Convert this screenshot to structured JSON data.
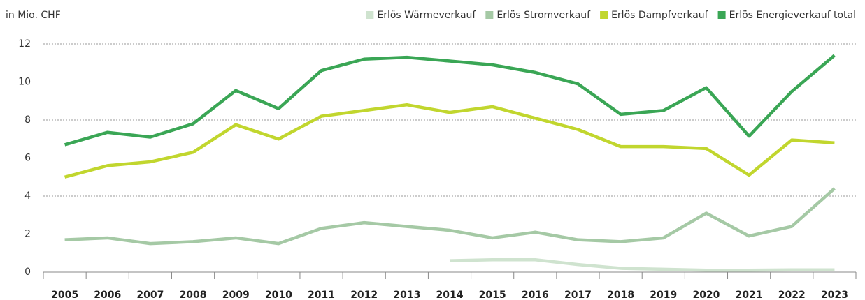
{
  "chart_data": {
    "type": "line",
    "subtitle": "in Mio. CHF",
    "categories": [
      "2005",
      "2006",
      "2007",
      "2008",
      "2009",
      "2010",
      "2011",
      "2012",
      "2013",
      "2014",
      "2015",
      "2016",
      "2017",
      "2018",
      "2019",
      "2020",
      "2021",
      "2022",
      "2023"
    ],
    "series": [
      {
        "name": "Erlös Wärmeverkauf",
        "color": "#cfe3cf",
        "values": [
          null,
          null,
          null,
          null,
          null,
          null,
          null,
          null,
          null,
          0.6,
          0.65,
          0.65,
          0.4,
          0.2,
          0.15,
          0.1,
          0.1,
          0.12,
          0.12
        ]
      },
      {
        "name": "Erlös Stromverkauf",
        "color": "#a5c9a5",
        "values": [
          1.7,
          1.8,
          1.5,
          1.6,
          1.8,
          1.5,
          2.3,
          2.6,
          2.4,
          2.2,
          1.8,
          2.1,
          1.7,
          1.6,
          1.8,
          3.1,
          1.9,
          2.4,
          4.4
        ]
      },
      {
        "name": "Erlös Dampfverkauf",
        "color": "#c1d62e",
        "values": [
          5.0,
          5.6,
          5.8,
          6.3,
          7.75,
          7.0,
          8.2,
          8.5,
          8.8,
          8.4,
          8.7,
          8.1,
          7.5,
          6.6,
          6.6,
          6.5,
          5.1,
          6.95,
          6.8
        ]
      },
      {
        "name": "Erlös Energieverkauf total",
        "color": "#3aa655",
        "values": [
          6.7,
          7.35,
          7.1,
          7.8,
          9.55,
          8.6,
          10.6,
          11.2,
          11.3,
          11.1,
          10.9,
          10.5,
          9.9,
          8.3,
          8.5,
          9.7,
          7.15,
          9.5,
          11.4
        ]
      }
    ],
    "ylim": [
      0,
      12
    ],
    "yticks": [
      0,
      2,
      4,
      6,
      8,
      10,
      12
    ],
    "grid": true,
    "legend": "top-right"
  }
}
